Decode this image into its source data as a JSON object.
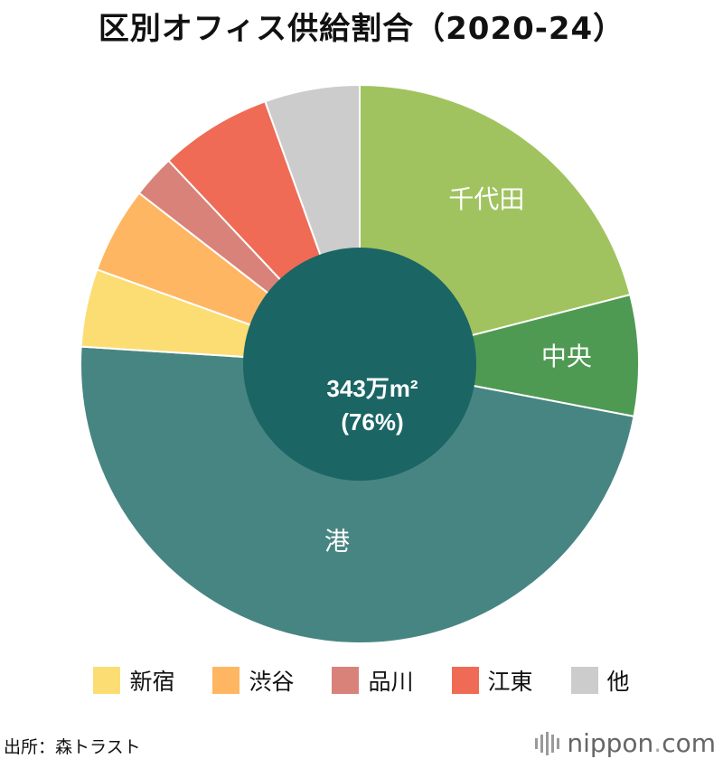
{
  "title": "区別オフィス供給割合（2020-24）",
  "chart_data": {
    "type": "pie",
    "title": "区別オフィス供給割合（2020-24）",
    "categories": [
      "千代田",
      "中央",
      "港",
      "新宿",
      "渋谷",
      "品川",
      "江東",
      "他"
    ],
    "values": [
      21,
      7,
      48,
      4.5,
      5,
      2.5,
      6.5,
      5.5
    ],
    "colors": [
      "#a0c35f",
      "#4f9a53",
      "#478582",
      "#fcdd73",
      "#feb662",
      "#d9827a",
      "#ef6b55",
      "#cccccc"
    ],
    "slice_labels": [
      "千代田",
      "中央",
      "港",
      "",
      "",
      "",
      "",
      ""
    ],
    "center": {
      "color": "#1b6565",
      "line1": "343万m²",
      "line2": "(76%)"
    },
    "legend": [
      {
        "label": "新宿",
        "color": "#fcdd73"
      },
      {
        "label": "渋谷",
        "color": "#feb662"
      },
      {
        "label": "品川",
        "color": "#d9827a"
      },
      {
        "label": "江東",
        "color": "#ef6b55"
      },
      {
        "label": "他",
        "color": "#cccccc"
      }
    ],
    "legend_position": "bottom"
  },
  "source": "出所：森トラスト",
  "brand": {
    "name": "nippon",
    "dot": ".",
    "tld": "com"
  }
}
